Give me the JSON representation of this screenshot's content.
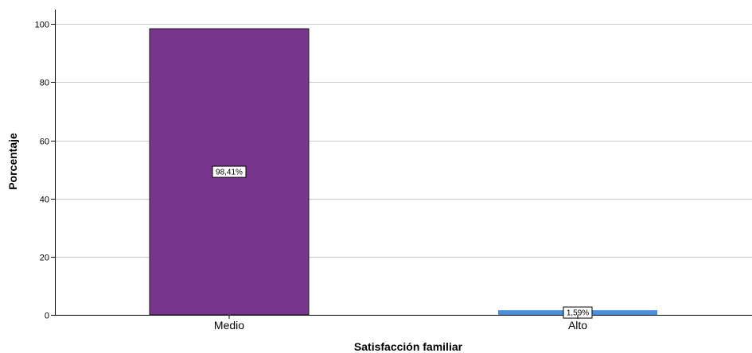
{
  "chart_data": {
    "type": "bar",
    "title": "",
    "xlabel": "Satisfacción familiar",
    "ylabel": "Porcentaje",
    "categories": [
      "Medio",
      "Alto"
    ],
    "values": [
      98.41,
      1.59
    ],
    "data_labels": [
      "98,41%",
      "1,59%"
    ],
    "colors": [
      "#77368b",
      "#4a90d9"
    ],
    "ylim": [
      0,
      105
    ],
    "yticks": [
      0,
      20,
      40,
      60,
      80,
      100
    ],
    "ytick_labels": [
      "0",
      "20",
      "40",
      "60",
      "80",
      "100"
    ],
    "grid": true,
    "legend": "none"
  }
}
